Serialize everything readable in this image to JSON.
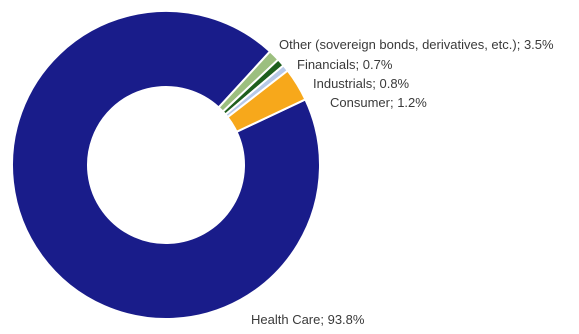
{
  "chart_data": {
    "type": "pie",
    "variant": "donut",
    "title": "",
    "slices": [
      {
        "label": "Health Care; 93.8%",
        "category": "Health Care",
        "value": 93.8,
        "color": "#191c8a"
      },
      {
        "label": "Consumer; 1.2%",
        "category": "Consumer",
        "value": 1.2,
        "color": "#9cbf7f"
      },
      {
        "label": "Industrials; 0.8%",
        "category": "Industrials",
        "value": 0.8,
        "color": "#1e5f1e"
      },
      {
        "label": "Financials; 0.7%",
        "category": "Financials",
        "value": 0.7,
        "color": "#b7c9e8"
      },
      {
        "label": "Other (sovereign bonds, derivatives, etc.); 3.5%",
        "category": "Other (sovereign bonds, derivatives, etc.)",
        "value": 3.5,
        "color": "#f7a81b"
      }
    ]
  }
}
